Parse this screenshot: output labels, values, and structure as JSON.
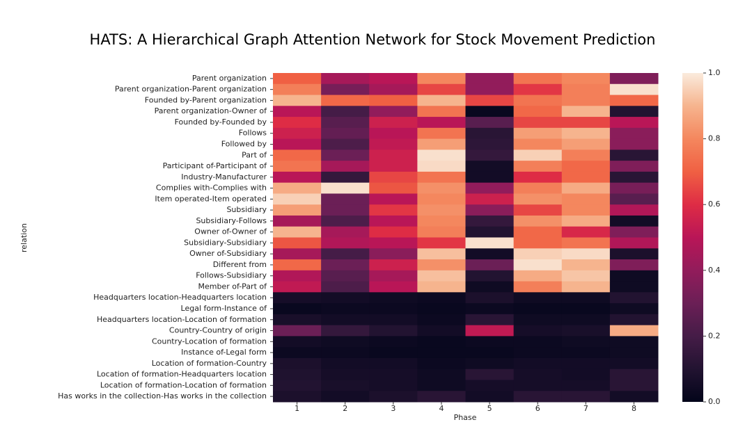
{
  "chart_data": {
    "type": "heatmap",
    "title": "HATS: A Hierarchical Graph Attention Network for Stock Movement Prediction",
    "xlabel": "Phase",
    "ylabel": "relation",
    "x": [
      "1",
      "2",
      "3",
      "4",
      "5",
      "6",
      "7",
      "8"
    ],
    "y": [
      "Parent organization",
      "Parent organization-Parent organization",
      "Founded by-Parent organization",
      "Parent organization-Owner of",
      "Founded by-Founded by",
      "Follows",
      "Followed by",
      "Part of",
      "Participant of-Participant of",
      "Industry-Manufacturer",
      "Complies with-Complies with",
      "Item operated-Item operated",
      "Subsidiary",
      "Subsidiary-Follows",
      "Owner of-Owner of",
      "Subsidiary-Subsidiary",
      "Owner of-Subsidiary",
      "Different from",
      "Follows-Subsidiary",
      "Member of-Part of",
      "Headquarters location-Headquarters location",
      "Legal form-Instance of",
      "Headquarters location-Location of formation",
      "Country-Country of origin",
      "Country-Location of formation",
      "Instance of-Legal form",
      "Location of formation-Country",
      "Location of formation-Headquarters location",
      "Location of formation-Location of formation",
      "Has works in the collection-Has works in the collection"
    ],
    "z": [
      [
        0.7,
        0.45,
        0.5,
        0.8,
        0.4,
        0.75,
        0.8,
        0.35
      ],
      [
        0.78,
        0.33,
        0.45,
        0.65,
        0.4,
        0.62,
        0.78,
        0.98
      ],
      [
        0.9,
        0.72,
        0.7,
        0.9,
        0.65,
        0.75,
        0.78,
        0.72
      ],
      [
        0.5,
        0.2,
        0.4,
        0.75,
        0.02,
        0.72,
        0.9,
        0.1
      ],
      [
        0.6,
        0.25,
        0.55,
        0.5,
        0.25,
        0.65,
        0.65,
        0.5
      ],
      [
        0.55,
        0.28,
        0.5,
        0.75,
        0.12,
        0.85,
        0.9,
        0.38
      ],
      [
        0.5,
        0.22,
        0.52,
        0.85,
        0.13,
        0.8,
        0.85,
        0.38
      ],
      [
        0.72,
        0.3,
        0.55,
        0.98,
        0.15,
        0.95,
        0.78,
        0.12
      ],
      [
        0.75,
        0.45,
        0.55,
        0.97,
        0.05,
        0.78,
        0.72,
        0.35
      ],
      [
        0.5,
        0.15,
        0.65,
        0.75,
        0.05,
        0.6,
        0.72,
        0.12
      ],
      [
        0.88,
        0.98,
        0.68,
        0.82,
        0.4,
        0.78,
        0.88,
        0.33
      ],
      [
        0.95,
        0.3,
        0.5,
        0.8,
        0.55,
        0.82,
        0.8,
        0.25
      ],
      [
        0.85,
        0.3,
        0.62,
        0.82,
        0.38,
        0.65,
        0.8,
        0.48
      ],
      [
        0.45,
        0.22,
        0.5,
        0.8,
        0.15,
        0.82,
        0.88,
        0.05
      ],
      [
        0.9,
        0.45,
        0.6,
        0.78,
        0.1,
        0.72,
        0.58,
        0.35
      ],
      [
        0.68,
        0.48,
        0.5,
        0.62,
        0.98,
        0.72,
        0.75,
        0.48
      ],
      [
        0.45,
        0.2,
        0.38,
        0.92,
        0.05,
        0.95,
        0.97,
        0.08
      ],
      [
        0.72,
        0.3,
        0.55,
        0.82,
        0.3,
        0.98,
        0.9,
        0.35
      ],
      [
        0.48,
        0.25,
        0.45,
        0.92,
        0.1,
        0.88,
        0.93,
        0.04
      ],
      [
        0.52,
        0.22,
        0.5,
        0.9,
        0.04,
        0.78,
        0.9,
        0.04
      ],
      [
        0.06,
        0.05,
        0.04,
        0.03,
        0.08,
        0.04,
        0.04,
        0.1
      ],
      [
        0.02,
        0.03,
        0.03,
        0.02,
        0.03,
        0.02,
        0.02,
        0.04
      ],
      [
        0.07,
        0.05,
        0.05,
        0.03,
        0.12,
        0.04,
        0.04,
        0.1
      ],
      [
        0.3,
        0.15,
        0.1,
        0.05,
        0.52,
        0.06,
        0.07,
        0.88
      ],
      [
        0.05,
        0.04,
        0.03,
        0.02,
        0.03,
        0.03,
        0.04,
        0.04
      ],
      [
        0.03,
        0.03,
        0.02,
        0.02,
        0.02,
        0.03,
        0.03,
        0.04
      ],
      [
        0.08,
        0.05,
        0.05,
        0.03,
        0.04,
        0.05,
        0.05,
        0.05
      ],
      [
        0.09,
        0.06,
        0.06,
        0.04,
        0.12,
        0.06,
        0.05,
        0.12
      ],
      [
        0.1,
        0.07,
        0.06,
        0.04,
        0.06,
        0.06,
        0.06,
        0.12
      ],
      [
        0.08,
        0.05,
        0.08,
        0.12,
        0.05,
        0.12,
        0.12,
        0.05
      ]
    ],
    "zlim": [
      0,
      1
    ],
    "zticks": [
      {
        "value": 0,
        "label": "0.0"
      },
      0.2,
      0.4,
      0.6,
      0.8,
      {
        "value": 1,
        "label": "1.0"
      }
    ],
    "colormap": [
      "#03051a",
      "#221331",
      "#451c47",
      "#6b1f56",
      "#921c5b",
      "#b91657",
      "#de2c45",
      "#f06043",
      "#f4875e",
      "#f6b48e",
      "#faebdd"
    ]
  }
}
